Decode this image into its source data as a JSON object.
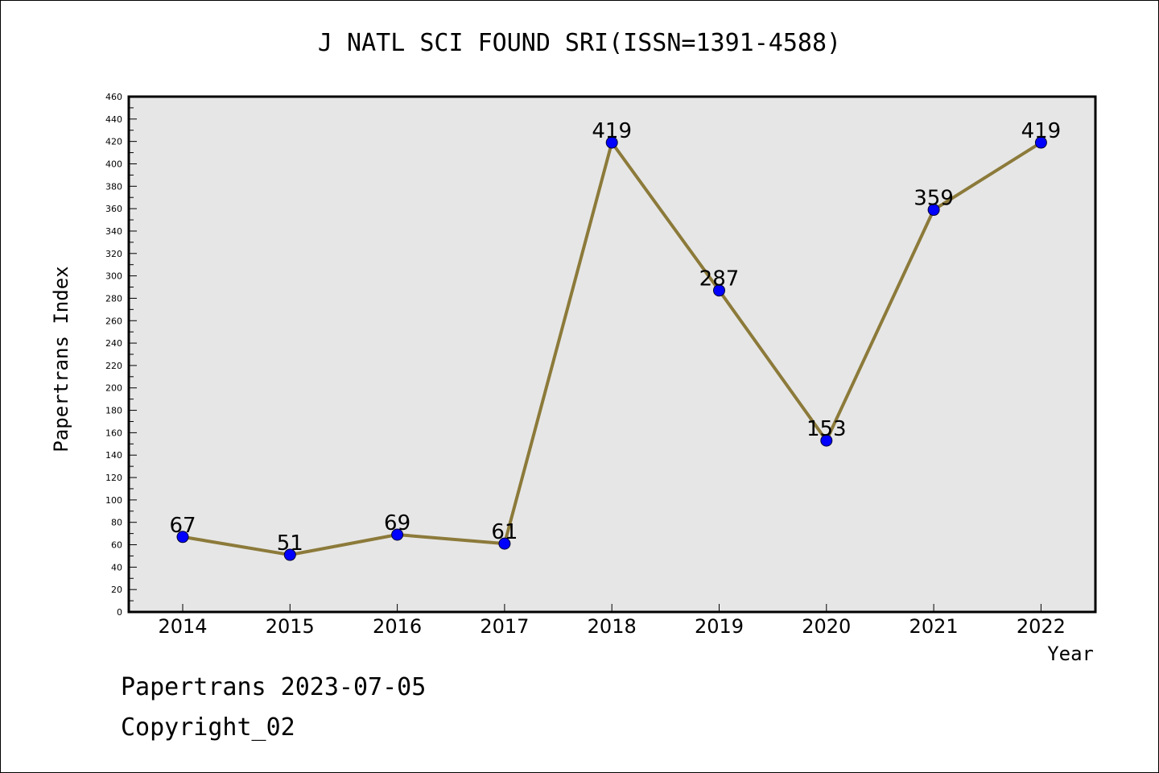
{
  "chart_data": {
    "type": "line",
    "title": "J NATL SCI FOUND SRI(ISSN=1391-4588)",
    "xlabel": "Year",
    "ylabel": "Papertrans Index",
    "categories": [
      "2014",
      "2015",
      "2016",
      "2017",
      "2018",
      "2019",
      "2020",
      "2021",
      "2022"
    ],
    "series": [
      {
        "values": [
          67,
          51,
          69,
          61,
          419,
          287,
          153,
          359,
          419
        ]
      }
    ],
    "ylim": [
      0,
      460
    ],
    "yticks": [
      0,
      20,
      40,
      60,
      80,
      100,
      120,
      140,
      160,
      180,
      200,
      220,
      240,
      260,
      280,
      300,
      320,
      340,
      360,
      380,
      400,
      420,
      440,
      460
    ],
    "grid": false,
    "colors": {
      "line": "#8c7a3a",
      "marker": "#0000ff",
      "plot_bg": "#e6e6e6"
    }
  },
  "footer": {
    "source": "Papertrans 2023-07-05",
    "copyright": "Copyright_02"
  }
}
